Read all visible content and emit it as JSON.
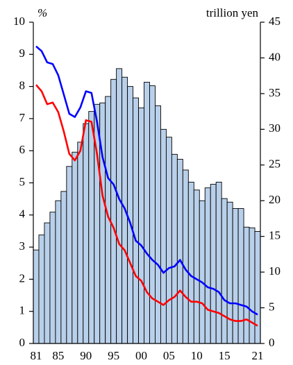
{
  "chart_data": {
    "type": "bar_line",
    "y_label": "%",
    "y2_label": "trillion yen",
    "categories": [
      "81",
      null,
      null,
      null,
      "85",
      null,
      null,
      null,
      null,
      "90",
      null,
      null,
      null,
      null,
      "95",
      null,
      null,
      null,
      null,
      "00",
      null,
      null,
      null,
      null,
      "05",
      null,
      null,
      null,
      null,
      "10",
      null,
      null,
      null,
      null,
      "15",
      null,
      null,
      null,
      null,
      null,
      "21"
    ],
    "series": [
      {
        "type": "bar",
        "axis": "y2",
        "color": "#b9d0ea",
        "values": [
          13.1,
          15.2,
          16.9,
          18.4,
          20.0,
          21.3,
          24.8,
          26.8,
          28.2,
          30.8,
          32.5,
          33.5,
          33.7,
          34.6,
          37.0,
          38.5,
          37.3,
          36.0,
          34.4,
          33.0,
          36.6,
          36.1,
          33.3,
          30.0,
          28.9,
          26.5,
          25.8,
          24.3,
          22.6,
          21.5,
          20.0,
          21.8,
          22.3,
          22.6,
          20.3,
          19.8,
          18.9,
          18.9,
          16.3,
          16.2,
          15.7
        ]
      },
      {
        "type": "line",
        "axis": "y",
        "color": "#0000ff",
        "values": [
          9.25,
          9.1,
          8.75,
          8.7,
          8.35,
          7.75,
          7.15,
          7.05,
          7.35,
          7.85,
          7.8,
          6.9,
          5.8,
          5.15,
          4.95,
          4.5,
          4.2,
          3.75,
          3.2,
          3.05,
          2.8,
          2.6,
          2.45,
          2.2,
          2.35,
          2.4,
          2.6,
          2.3,
          2.1,
          2.0,
          1.9,
          1.75,
          1.7,
          1.6,
          1.35,
          1.25,
          1.25,
          1.2,
          1.15,
          1.0,
          0.9
        ]
      },
      {
        "type": "line",
        "axis": "y",
        "color": "#ff0000",
        "values": [
          8.05,
          7.85,
          7.45,
          7.5,
          7.2,
          6.6,
          5.9,
          5.7,
          6.0,
          6.95,
          6.9,
          5.9,
          4.6,
          3.95,
          3.6,
          3.1,
          2.9,
          2.5,
          2.1,
          1.95,
          1.6,
          1.4,
          1.3,
          1.2,
          1.35,
          1.45,
          1.65,
          1.45,
          1.3,
          1.3,
          1.25,
          1.05,
          1.0,
          0.95,
          0.85,
          0.75,
          0.7,
          0.7,
          0.75,
          0.65,
          0.55
        ]
      }
    ],
    "ylim": [
      0,
      10
    ],
    "yticks": [
      0,
      1,
      2,
      3,
      4,
      5,
      6,
      7,
      8,
      9,
      10
    ],
    "y2lim": [
      0,
      45
    ],
    "y2ticks": [
      0,
      5,
      10,
      15,
      20,
      25,
      30,
      35,
      40,
      45
    ]
  }
}
